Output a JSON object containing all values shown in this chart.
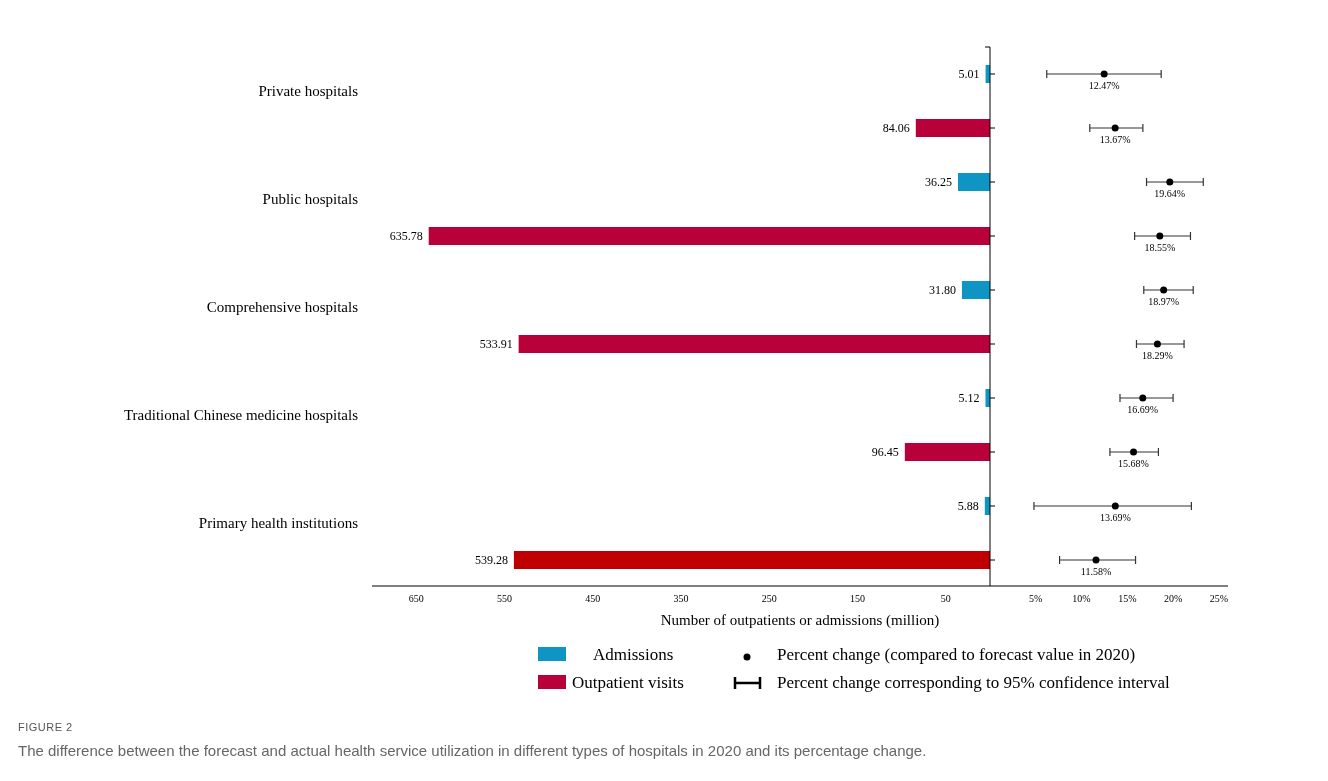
{
  "chart_data": [
    {
      "type": "bar",
      "orientation": "horizontal",
      "categories": [
        "Private hospitals",
        "Public hospitals",
        "Comprehensive hospitals",
        "Traditional Chinese medicine hospitals",
        "Primary health institutions"
      ],
      "series": [
        {
          "name": "Admissions",
          "color": "#0f95c3",
          "values": [
            5.01,
            36.25,
            31.8,
            5.12,
            5.88
          ],
          "value_labels": [
            "5.01",
            "36.25",
            "31.80",
            "5.12",
            "5.88"
          ]
        },
        {
          "name": "Outpatient visits",
          "color": "#b8003a",
          "colors": [
            "#b8003a",
            "#b8003a",
            "#b8003a",
            "#b8003a",
            "#c00000"
          ],
          "values": [
            84.06,
            635.78,
            533.91,
            96.45,
            539.28
          ],
          "value_labels": [
            "84.06",
            "635.78",
            "533.91",
            "96.45",
            "539.28"
          ]
        }
      ],
      "xlim": [
        700,
        0
      ],
      "xticks": [
        650,
        550,
        450,
        350,
        250,
        150,
        50
      ],
      "xlabel": "Number of outpatients or admissions (million)",
      "legend": "bottom",
      "annotations": [
        "FIGURE 2",
        "The difference between the forecast and actual health service utilization in different types of hospitals in 2020 and its percentage change."
      ]
    },
    {
      "type": "scatter",
      "orientation": "horizontal",
      "categories": [
        null,
        null,
        null,
        null,
        null,
        null,
        null,
        null,
        null,
        null
      ],
      "series": [
        {
          "name": "Percent change (compared to forecast value in 2020)",
          "color": "#000000",
          "values": [
            12.47,
            13.67,
            19.64,
            18.55,
            18.97,
            18.29,
            16.69,
            15.68,
            13.69,
            11.58
          ],
          "errors": [
            [
              6.2,
              18.7
            ],
            [
              10.9,
              16.7
            ],
            [
              17.1,
              23.3
            ],
            [
              15.8,
              21.9
            ],
            [
              16.8,
              22.2
            ],
            [
              16.0,
              21.2
            ],
            [
              14.2,
              20.0
            ],
            [
              13.1,
              18.4
            ],
            [
              4.8,
              22.0
            ],
            [
              7.6,
              15.9
            ]
          ],
          "value_labels": [
            "12.47%",
            "13.67%",
            "19.64%",
            "18.55%",
            "18.97%",
            "18.29%",
            "16.69%",
            "15.68%",
            "13.69%",
            "11.58%"
          ]
        }
      ],
      "xlim": [
        0,
        26
      ],
      "xticks": [
        {
          "value": 5,
          "label": "5%"
        },
        {
          "value": 10,
          "label": "10%"
        },
        {
          "value": 15,
          "label": "15%"
        },
        {
          "value": 20,
          "label": "20%"
        },
        {
          "value": 25,
          "label": "25%"
        }
      ],
      "tick_labels": "x",
      "marker": "circle",
      "legend": "bottom",
      "annotations": [
        "Percent change corresponding to 95% confidence interval"
      ]
    }
  ]
}
